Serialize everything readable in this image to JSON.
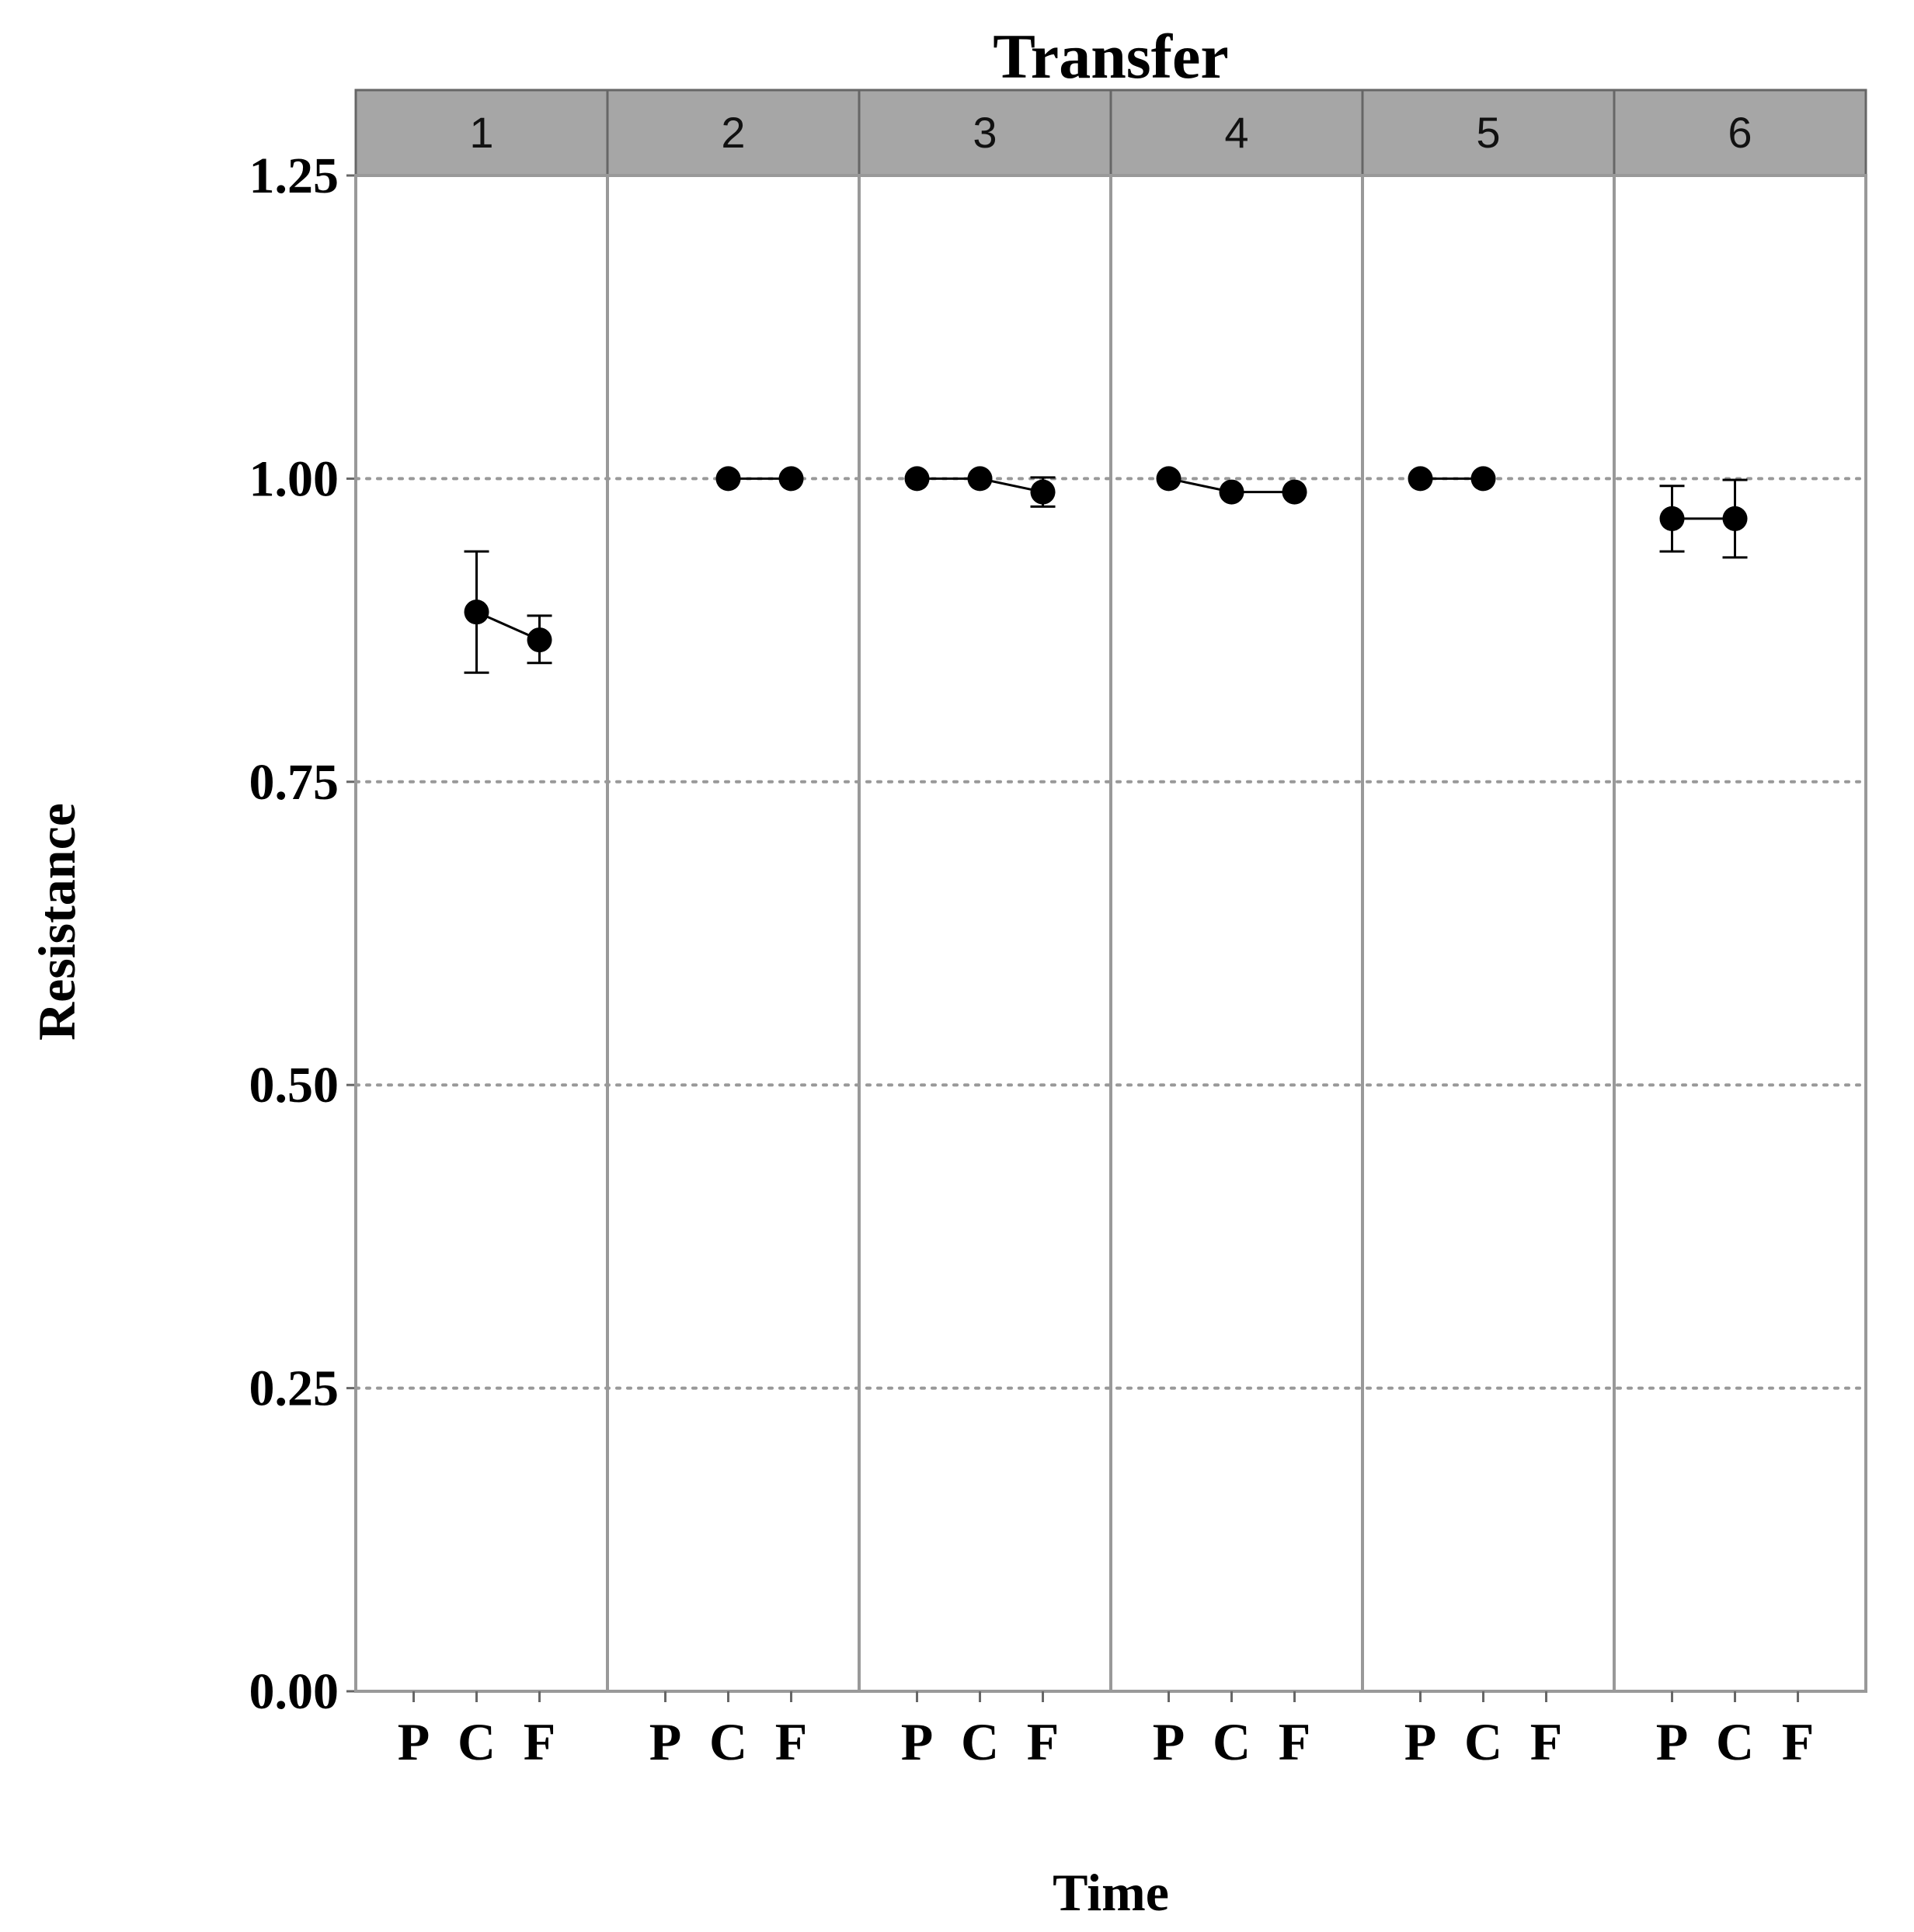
{
  "chart_data": {
    "type": "scatter",
    "title": "Transfer",
    "xlabel": "Time",
    "ylabel": "Resistance",
    "ylim": [
      0,
      1.25
    ],
    "yticks": [
      "0.00",
      "0.25",
      "0.50",
      "0.75",
      "1.00",
      "1.25"
    ],
    "categories": [
      "P",
      "C",
      "F"
    ],
    "grid": "horizontal dotted",
    "panels": [
      {
        "label": "1",
        "points": [
          {
            "x": "C",
            "y": 0.89,
            "low": 0.84,
            "high": 0.94
          },
          {
            "x": "F",
            "y": 0.867,
            "low": 0.848,
            "high": 0.887
          }
        ]
      },
      {
        "label": "2",
        "points": [
          {
            "x": "C",
            "y": 1.0
          },
          {
            "x": "F",
            "y": 1.0
          }
        ]
      },
      {
        "label": "3",
        "points": [
          {
            "x": "P",
            "y": 1.0
          },
          {
            "x": "C",
            "y": 1.0
          },
          {
            "x": "F",
            "y": 0.989,
            "low": 0.977,
            "high": 1.001
          }
        ]
      },
      {
        "label": "4",
        "points": [
          {
            "x": "P",
            "y": 1.0
          },
          {
            "x": "C",
            "y": 0.989
          },
          {
            "x": "F",
            "y": 0.989
          }
        ]
      },
      {
        "label": "5",
        "points": [
          {
            "x": "P",
            "y": 1.0
          },
          {
            "x": "C",
            "y": 1.0
          }
        ]
      },
      {
        "label": "6",
        "points": [
          {
            "x": "P",
            "y": 0.967,
            "low": 0.94,
            "high": 0.994
          },
          {
            "x": "C",
            "y": 0.967,
            "low": 0.935,
            "high": 0.999
          }
        ]
      }
    ]
  },
  "colors": {
    "strip_fill": "#a6a6a6",
    "panel_border": "#999999",
    "grid": "#999999",
    "marker": "#000000"
  }
}
